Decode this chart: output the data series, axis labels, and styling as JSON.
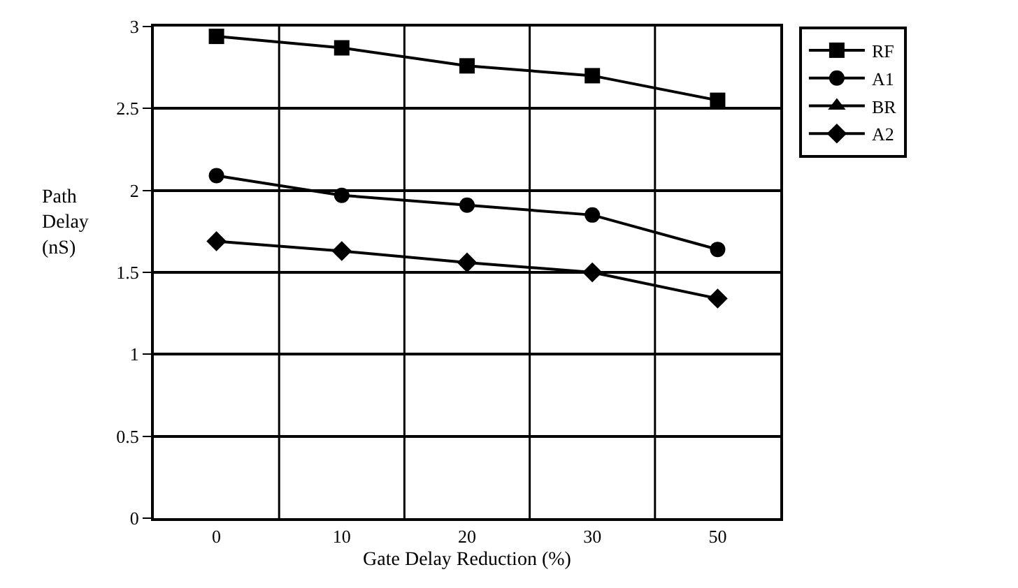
{
  "chart_data": {
    "type": "line",
    "xlabel": "Gate Delay Reduction (%)",
    "ylabel": "Path Delay (nS)",
    "categories": [
      "0",
      "10",
      "20",
      "30",
      "50"
    ],
    "series": [
      {
        "name": "RF",
        "color": "#000000",
        "marker": "square",
        "values": [
          2.94,
          2.87,
          2.76,
          2.7,
          2.55
        ]
      },
      {
        "name": "A1",
        "color": "#000000",
        "marker": "circle",
        "values": [
          2.09,
          1.97,
          1.91,
          1.85,
          1.64
        ]
      },
      {
        "name": "BR",
        "color": "#000000",
        "marker": "triangle",
        "values": [
          null,
          null,
          null,
          null,
          null
        ]
      },
      {
        "name": "A2",
        "color": "#000000",
        "marker": "diamond",
        "values": [
          1.69,
          1.63,
          1.56,
          1.5,
          1.34
        ]
      }
    ],
    "ylim": [
      0,
      3
    ],
    "yticks": [
      0,
      0.5,
      1,
      1.5,
      2,
      2.5,
      3
    ],
    "grid": true,
    "legend": "top right",
    "line_style": "solid"
  }
}
